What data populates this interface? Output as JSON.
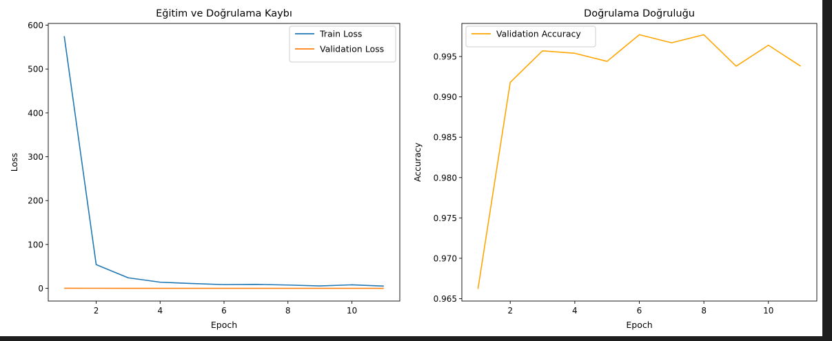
{
  "colors": {
    "train": "#1f77b4",
    "validation_loss": "#ff7f0e",
    "validation_accuracy": "#ffa500"
  },
  "chart_data": [
    {
      "type": "line",
      "title": "Eğitim ve Doğrulama Kaybı",
      "xlabel": "Epoch",
      "ylabel": "Loss",
      "xlim": [
        0.5,
        11.5
      ],
      "ylim": [
        -29,
        604
      ],
      "xticks": [
        2,
        4,
        6,
        8,
        10
      ],
      "yticks": [
        0,
        100,
        200,
        300,
        400,
        500,
        600
      ],
      "grid": false,
      "legend": "top-right",
      "x": [
        1,
        2,
        3,
        4,
        5,
        6,
        7,
        8,
        9,
        10,
        11
      ],
      "series": [
        {
          "name": "Train Loss",
          "color": "#1f77b4",
          "values": [
            575,
            54,
            24,
            14,
            11,
            8.5,
            9,
            7.5,
            5.5,
            8,
            5
          ]
        },
        {
          "name": "Validation Loss",
          "color": "#ff7f0e",
          "values": [
            0.15,
            0.05,
            0.03,
            0.03,
            0.03,
            0.02,
            0.02,
            0.02,
            0.03,
            0.02,
            0.03
          ]
        }
      ]
    },
    {
      "type": "line",
      "title": "Doğrulama Doğruluğu",
      "xlabel": "Epoch",
      "ylabel": "Accuracy",
      "xlim": [
        0.5,
        11.5
      ],
      "ylim": [
        0.9647,
        0.9991
      ],
      "xticks": [
        2,
        4,
        6,
        8,
        10
      ],
      "yticks": [
        0.965,
        0.97,
        0.975,
        0.98,
        0.985,
        0.99,
        0.995
      ],
      "yticklabels": [
        "0.965",
        "0.970",
        "0.975",
        "0.980",
        "0.985",
        "0.990",
        "0.995"
      ],
      "grid": false,
      "legend": "top-left",
      "x": [
        1,
        2,
        3,
        4,
        5,
        6,
        7,
        8,
        9,
        10,
        11
      ],
      "series": [
        {
          "name": "Validation Accuracy",
          "color": "#ffa500",
          "values": [
            0.9662,
            0.9918,
            0.9957,
            0.9954,
            0.9944,
            0.9977,
            0.9967,
            0.9977,
            0.9938,
            0.9964,
            0.9938
          ]
        }
      ]
    }
  ]
}
